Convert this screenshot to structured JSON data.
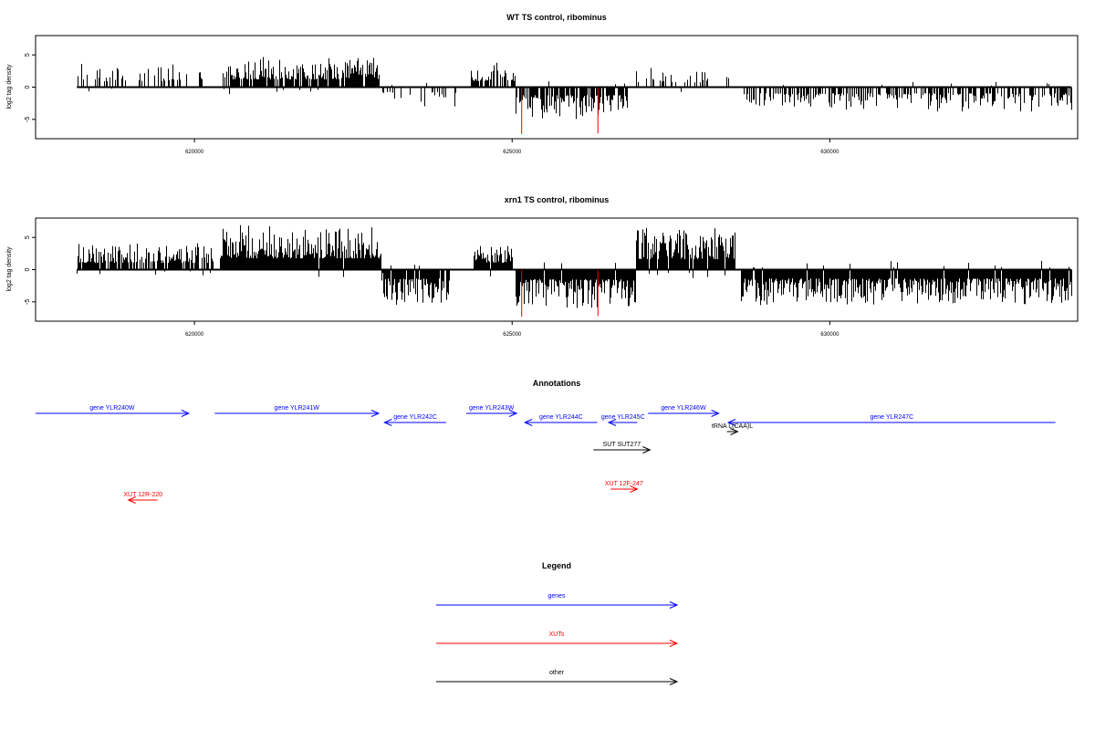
{
  "chart_data": [
    {
      "type": "bar",
      "title": "WT TS control, ribominus",
      "ylabel": "log2 tag density",
      "xlabel": "",
      "xlim": [
        617500,
        633900
      ],
      "ylim": [
        -8,
        8
      ],
      "x_ticks": [
        620000,
        625000,
        630000
      ],
      "x_tick_labels": [
        "620000",
        "625000",
        "630000"
      ],
      "y_ticks": [
        -5,
        0,
        5
      ],
      "y_tick_labels": [
        "-5",
        "0",
        "5"
      ],
      "colors": {
        "bars": "#000000",
        "highlight": "#ff0000"
      },
      "signal_segments": [
        {
          "start": 618150,
          "end": 620180,
          "sign": 1,
          "max": 3.6,
          "density": 0.3
        },
        {
          "start": 620450,
          "end": 622900,
          "sign": 1,
          "max": 4.8,
          "density": 0.9
        },
        {
          "start": 622950,
          "end": 624100,
          "sign": -1,
          "max": 3.0,
          "density": 0.3
        },
        {
          "start": 624350,
          "end": 625050,
          "sign": 1,
          "max": 3.8,
          "density": 0.7
        },
        {
          "start": 625050,
          "end": 626800,
          "sign": -1,
          "max": 5.0,
          "density": 0.8
        },
        {
          "start": 626950,
          "end": 628450,
          "sign": 1,
          "max": 3.0,
          "density": 0.35
        },
        {
          "start": 628650,
          "end": 633800,
          "sign": -1,
          "max": 3.8,
          "density": 0.6
        }
      ],
      "highlight_bars": [
        {
          "x": 625150,
          "y": -7.3
        },
        {
          "x": 626350,
          "y": -7.2
        }
      ]
    },
    {
      "type": "bar",
      "title": "xrn1 TS control, ribominus",
      "ylabel": "log2 tag density",
      "xlabel": "",
      "xlim": [
        617500,
        633900
      ],
      "ylim": [
        -8,
        8
      ],
      "x_ticks": [
        620000,
        625000,
        630000
      ],
      "x_tick_labels": [
        "620000",
        "625000",
        "630000"
      ],
      "y_ticks": [
        -5,
        0,
        5
      ],
      "y_tick_labels": [
        "-5",
        "0",
        "5"
      ],
      "colors": {
        "bars": "#000000",
        "highlight": "#ff0000"
      },
      "signal_segments": [
        {
          "start": 618150,
          "end": 620300,
          "sign": 1,
          "max": 4.2,
          "density": 0.8
        },
        {
          "start": 620400,
          "end": 622950,
          "sign": 1,
          "max": 7.0,
          "density": 1.0
        },
        {
          "start": 622950,
          "end": 624000,
          "sign": -1,
          "max": 5.5,
          "density": 0.9
        },
        {
          "start": 624400,
          "end": 625000,
          "sign": 1,
          "max": 4.3,
          "density": 1.0
        },
        {
          "start": 625050,
          "end": 626950,
          "sign": -1,
          "max": 6.0,
          "density": 1.0
        },
        {
          "start": 626950,
          "end": 628500,
          "sign": 1,
          "max": 6.5,
          "density": 1.0
        },
        {
          "start": 628600,
          "end": 633800,
          "sign": -1,
          "max": 5.5,
          "density": 1.0
        }
      ],
      "highlight_bars": [
        {
          "x": 625150,
          "y": -7.3
        },
        {
          "x": 626350,
          "y": -7.2
        }
      ]
    },
    {
      "type": "annotation_track",
      "title": "Annotations",
      "xlim": [
        617500,
        633900
      ],
      "features": [
        {
          "label": "gene YLR240W",
          "category": "gene",
          "start": 617500,
          "end": 619910,
          "strand": "+",
          "row": 0
        },
        {
          "label": "gene YLR241W",
          "category": "gene",
          "start": 620320,
          "end": 622900,
          "strand": "+",
          "row": 0
        },
        {
          "label": "gene YLR242C",
          "category": "gene",
          "start": 622990,
          "end": 623960,
          "strand": "-",
          "row": 1
        },
        {
          "label": "gene YLR243W",
          "category": "gene",
          "start": 624280,
          "end": 625070,
          "strand": "+",
          "row": 0
        },
        {
          "label": "gene YLR244C",
          "category": "gene",
          "start": 625200,
          "end": 626340,
          "strand": "-",
          "row": 1
        },
        {
          "label": "gene YLR245C",
          "category": "gene",
          "start": 626520,
          "end": 626970,
          "strand": "-",
          "row": 1
        },
        {
          "label": "gene YLR246W",
          "category": "gene",
          "start": 627140,
          "end": 628250,
          "strand": "+",
          "row": 0
        },
        {
          "label": "gene YLR247C",
          "category": "gene",
          "start": 628400,
          "end": 633550,
          "strand": "-",
          "row": 1
        },
        {
          "label": "tRNA L(CAA)L",
          "category": "other",
          "start": 628380,
          "end": 628550,
          "strand": "+",
          "row": 2
        },
        {
          "label": "SUT SUT277",
          "category": "other",
          "start": 626280,
          "end": 627170,
          "strand": "+",
          "row": 3
        },
        {
          "label": "XUT 12R-220",
          "category": "XUT",
          "start": 618960,
          "end": 619420,
          "strand": "-",
          "row": 5
        },
        {
          "label": "XUT 12F-247",
          "category": "XUT",
          "start": 626550,
          "end": 626970,
          "strand": "+",
          "row": 4
        }
      ]
    },
    {
      "type": "legend",
      "title": "Legend",
      "entries": [
        {
          "label": "genes",
          "color": "#0000ff"
        },
        {
          "label": "XUTs",
          "color": "#ff0000"
        },
        {
          "label": "other",
          "color": "#000000"
        }
      ]
    }
  ]
}
